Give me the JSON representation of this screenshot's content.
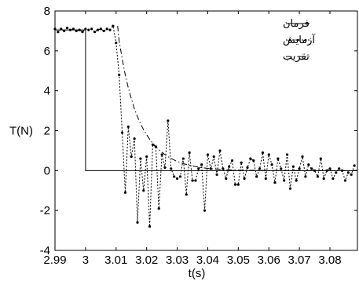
{
  "chart_data": {
    "type": "line",
    "xlabel": "t(s)",
    "ylabel": "T(N)",
    "xlim": [
      2.99,
      3.089
    ],
    "ylim": [
      -4,
      8
    ],
    "grid": false,
    "legend_placement": "top-right",
    "x_ticks": [
      2.99,
      3,
      3.01,
      3.02,
      3.03,
      3.04,
      3.05,
      3.06,
      3.07,
      3.08
    ],
    "x_tick_labels": [
      "2.99",
      "3",
      "3.01",
      "3.02",
      "3.03",
      "3.04",
      "3.05",
      "3.06",
      "3.07",
      "3.08"
    ],
    "y_ticks": [
      -4,
      -2,
      0,
      2,
      4,
      6,
      8
    ],
    "y_tick_labels": [
      "-4",
      "-2",
      "0",
      "2",
      "4",
      "6",
      "8"
    ],
    "series": [
      {
        "name": "فرمان",
        "style": "solid",
        "color": "#000000",
        "x": [
          2.99,
          3.0,
          3.0,
          3.089
        ],
        "y": [
          7.05,
          7.05,
          0.0,
          0.0
        ]
      },
      {
        "name": "آزمایش",
        "style": "dotted-marker",
        "color": "#000000",
        "x": [
          2.99,
          2.991,
          2.992,
          2.993,
          2.994,
          2.995,
          2.996,
          2.997,
          2.998,
          2.999,
          3.0,
          3.001,
          3.002,
          3.003,
          3.004,
          3.005,
          3.006,
          3.007,
          3.008,
          3.009,
          3.01,
          3.011,
          3.012,
          3.013,
          3.014,
          3.015,
          3.016,
          3.017,
          3.018,
          3.019,
          3.02,
          3.021,
          3.022,
          3.023,
          3.024,
          3.025,
          3.026,
          3.027,
          3.028,
          3.029,
          3.03,
          3.031,
          3.032,
          3.033,
          3.034,
          3.035,
          3.036,
          3.037,
          3.038,
          3.039,
          3.04,
          3.041,
          3.042,
          3.043,
          3.044,
          3.045,
          3.046,
          3.047,
          3.048,
          3.049,
          3.05,
          3.051,
          3.052,
          3.053,
          3.054,
          3.055,
          3.056,
          3.057,
          3.058,
          3.059,
          3.06,
          3.061,
          3.062,
          3.063,
          3.064,
          3.065,
          3.066,
          3.067,
          3.068,
          3.069,
          3.07,
          3.071,
          3.072,
          3.073,
          3.074,
          3.075,
          3.076,
          3.077,
          3.078,
          3.079,
          3.08,
          3.081,
          3.082,
          3.083,
          3.084,
          3.085,
          3.086,
          3.087,
          3.088
        ],
        "y": [
          7.1,
          6.95,
          7.1,
          7.0,
          7.15,
          7.05,
          7.1,
          7.0,
          7.05,
          6.95,
          7.1,
          7.05,
          7.1,
          6.95,
          7.05,
          7.1,
          7.0,
          7.1,
          7.05,
          7.25,
          6.4,
          4.8,
          1.9,
          -1.1,
          2.2,
          0.7,
          1.6,
          -2.6,
          0.6,
          -1.0,
          0.7,
          -2.8,
          1.3,
          1.2,
          -1.9,
          0.8,
          0.15,
          2.5,
          0.1,
          -0.3,
          -0.4,
          -0.3,
          0.6,
          -1.2,
          0.9,
          -0.5,
          -0.5,
          0.1,
          0.3,
          -2.0,
          0.8,
          0.1,
          0.7,
          -0.2,
          1.0,
          0.1,
          -0.4,
          0.2,
          0.5,
          -0.7,
          -0.7,
          0.4,
          -0.4,
          0.15,
          0.6,
          0.5,
          -0.3,
          0.1,
          0.9,
          -0.4,
          0.8,
          0.3,
          -0.6,
          0.6,
          0.1,
          -0.5,
          0.8,
          -0.9,
          0.2,
          -0.5,
          0.1,
          0.7,
          -0.3,
          0.3,
          0.1,
          0.0,
          -0.3,
          0.6,
          -0.4,
          0.0,
          0.1,
          -0.4,
          -0.1,
          0.1,
          0.0,
          -0.5,
          -0.1,
          -0.2,
          0.25
        ]
      },
      {
        "name": "تقریب",
        "style": "dash-dot",
        "color": "#000000",
        "x": [
          3.0105,
          3.011,
          3.012,
          3.013,
          3.014,
          3.015,
          3.016,
          3.017,
          3.018,
          3.019,
          3.02,
          3.021,
          3.022,
          3.023,
          3.024,
          3.025,
          3.026,
          3.027,
          3.028,
          3.029,
          3.03,
          3.032,
          3.034,
          3.036,
          3.038,
          3.04,
          3.044,
          3.048,
          3.052,
          3.056,
          3.06,
          3.065,
          3.07,
          3.075,
          3.08,
          3.085,
          3.089
        ],
        "y": [
          7.25,
          6.5,
          5.6,
          4.8,
          4.15,
          3.6,
          3.1,
          2.7,
          2.35,
          2.05,
          1.8,
          1.57,
          1.37,
          1.2,
          1.05,
          0.92,
          0.8,
          0.7,
          0.61,
          0.53,
          0.46,
          0.35,
          0.27,
          0.2,
          0.15,
          0.11,
          0.06,
          0.03,
          0.02,
          0.01,
          0.0,
          0.0,
          0.0,
          0.0,
          0.0,
          0.0,
          0.0
        ]
      }
    ]
  }
}
